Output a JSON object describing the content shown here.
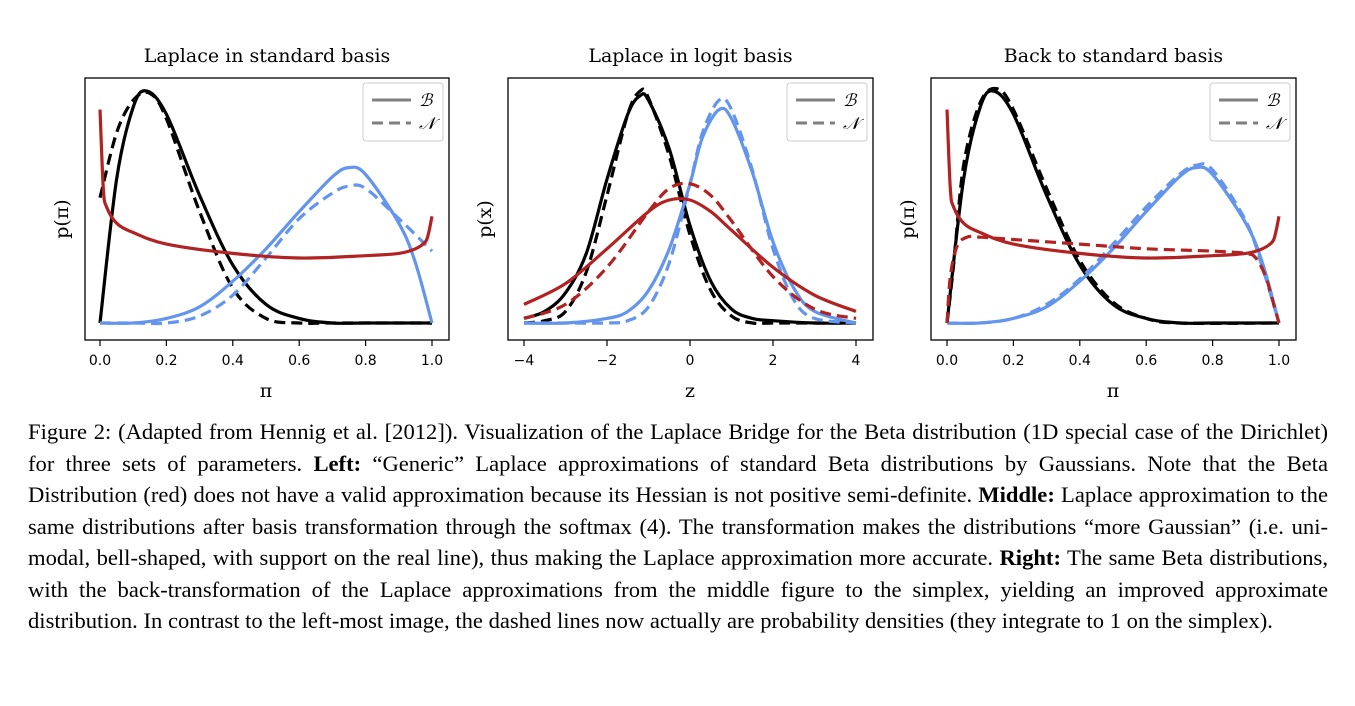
{
  "chart_data": [
    {
      "type": "line",
      "title": "Laplace in standard basis",
      "xlabel": "π",
      "ylabel": "p(π)",
      "xlim": [
        0,
        1
      ],
      "xticks": [
        "0.0",
        "0.2",
        "0.4",
        "0.6",
        "0.8",
        "1.0"
      ],
      "legend": {
        "placement": "top-right",
        "entries": [
          {
            "label": "ℬ",
            "style": "solid"
          },
          {
            "label": "𝒩",
            "style": "dashed"
          }
        ]
      },
      "series": [
        {
          "color": "#000000",
          "style": "solid",
          "x": [
            0.0,
            0.05,
            0.1,
            0.14,
            0.2,
            0.3,
            0.4,
            0.5,
            0.6,
            0.7,
            0.8,
            1.0
          ],
          "y": [
            0.0,
            0.62,
            0.93,
            1.0,
            0.9,
            0.55,
            0.25,
            0.08,
            0.02,
            0.0,
            0.0,
            0.0
          ]
        },
        {
          "color": "#000000",
          "style": "dashed",
          "x": [
            0.0,
            0.05,
            0.1,
            0.15,
            0.2,
            0.3,
            0.4,
            0.5,
            0.6,
            0.7,
            1.0
          ],
          "y": [
            0.54,
            0.82,
            0.96,
            0.99,
            0.88,
            0.48,
            0.15,
            0.02,
            0.0,
            0.0,
            0.0
          ]
        },
        {
          "color": "#6495ed",
          "style": "solid",
          "x": [
            0.0,
            0.1,
            0.2,
            0.3,
            0.4,
            0.5,
            0.6,
            0.7,
            0.75,
            0.8,
            0.9,
            0.95,
            1.0
          ],
          "y": [
            0.0,
            0.0,
            0.02,
            0.07,
            0.18,
            0.32,
            0.48,
            0.63,
            0.67,
            0.64,
            0.43,
            0.26,
            0.0
          ]
        },
        {
          "color": "#6495ed",
          "style": "dashed",
          "x": [
            0.0,
            0.1,
            0.2,
            0.3,
            0.4,
            0.5,
            0.6,
            0.7,
            0.75,
            0.8,
            0.9,
            1.0
          ],
          "y": [
            0.0,
            0.0,
            0.0,
            0.03,
            0.12,
            0.28,
            0.45,
            0.56,
            0.59,
            0.58,
            0.45,
            0.31
          ]
        },
        {
          "color": "#b22222",
          "style": "solid",
          "x": [
            0.0,
            0.01,
            0.02,
            0.05,
            0.1,
            0.2,
            0.4,
            0.6,
            0.8,
            0.9,
            0.95,
            0.98,
            0.99,
            1.0
          ],
          "y": [
            0.92,
            0.58,
            0.5,
            0.43,
            0.39,
            0.34,
            0.3,
            0.28,
            0.29,
            0.3,
            0.32,
            0.35,
            0.39,
            0.46
          ]
        }
      ]
    },
    {
      "type": "line",
      "title": "Laplace in logit basis",
      "xlabel": "z",
      "ylabel": "p(x)",
      "xlim": [
        -4,
        4
      ],
      "xticks": [
        "−4",
        "−2",
        "0",
        "2",
        "4"
      ],
      "legend": {
        "placement": "top-right",
        "entries": [
          {
            "label": "ℬ",
            "style": "solid"
          },
          {
            "label": "𝒩",
            "style": "dashed"
          }
        ]
      },
      "series": [
        {
          "color": "#000000",
          "style": "solid",
          "x": [
            -4,
            -3.5,
            -3,
            -2.5,
            -2,
            -1.5,
            -1.2,
            -1,
            -0.5,
            0,
            0.5,
            1,
            1.5,
            2,
            3,
            4
          ],
          "y": [
            0.02,
            0.05,
            0.13,
            0.3,
            0.62,
            0.9,
            0.98,
            0.96,
            0.75,
            0.42,
            0.18,
            0.06,
            0.02,
            0.01,
            0.0,
            0.0
          ]
        },
        {
          "color": "#000000",
          "style": "dashed",
          "x": [
            -4,
            -3.5,
            -3,
            -2.5,
            -2,
            -1.5,
            -1.2,
            -1,
            -0.5,
            0,
            0.5,
            1,
            1.5,
            2,
            3,
            4
          ],
          "y": [
            0.0,
            0.01,
            0.05,
            0.22,
            0.55,
            0.9,
            1.0,
            0.97,
            0.72,
            0.38,
            0.14,
            0.03,
            0.0,
            0.0,
            0.0,
            0.0
          ]
        },
        {
          "color": "#6495ed",
          "style": "solid",
          "x": [
            -4,
            -3,
            -2,
            -1.5,
            -1,
            -0.5,
            0,
            0.3,
            0.7,
            1,
            1.5,
            2,
            2.5,
            3,
            4
          ],
          "y": [
            0.0,
            0.0,
            0.02,
            0.05,
            0.14,
            0.32,
            0.6,
            0.8,
            0.92,
            0.88,
            0.65,
            0.35,
            0.15,
            0.05,
            0.0
          ]
        },
        {
          "color": "#6495ed",
          "style": "dashed",
          "x": [
            -4,
            -3,
            -2,
            -1.5,
            -1,
            -0.5,
            0,
            0.3,
            0.7,
            1,
            1.5,
            2,
            2.5,
            3,
            4
          ],
          "y": [
            0.0,
            0.0,
            0.0,
            0.01,
            0.07,
            0.26,
            0.6,
            0.82,
            0.96,
            0.92,
            0.66,
            0.32,
            0.1,
            0.02,
            0.0
          ]
        },
        {
          "color": "#b22222",
          "style": "solid",
          "x": [
            -4,
            -3,
            -2,
            -1,
            -0.5,
            0,
            0.5,
            1,
            2,
            3,
            4
          ],
          "y": [
            0.08,
            0.17,
            0.32,
            0.48,
            0.53,
            0.53,
            0.48,
            0.4,
            0.24,
            0.12,
            0.05
          ]
        },
        {
          "color": "#b22222",
          "style": "dashed",
          "x": [
            -4,
            -3,
            -2,
            -1,
            -0.5,
            0,
            0.5,
            1,
            2,
            3,
            4
          ],
          "y": [
            0.02,
            0.08,
            0.24,
            0.48,
            0.58,
            0.6,
            0.55,
            0.44,
            0.2,
            0.06,
            0.02
          ]
        }
      ]
    },
    {
      "type": "line",
      "title": "Back to standard basis",
      "xlabel": "π",
      "ylabel": "p(π)",
      "xlim": [
        0,
        1
      ],
      "xticks": [
        "0.0",
        "0.2",
        "0.4",
        "0.6",
        "0.8",
        "1.0"
      ],
      "legend": {
        "placement": "top-right",
        "entries": [
          {
            "label": "ℬ",
            "style": "solid"
          },
          {
            "label": "𝒩",
            "style": "dashed"
          }
        ]
      },
      "series": [
        {
          "color": "#000000",
          "style": "solid",
          "x": [
            0.0,
            0.05,
            0.1,
            0.14,
            0.2,
            0.3,
            0.4,
            0.5,
            0.6,
            0.7,
            0.8,
            1.0
          ],
          "y": [
            0.0,
            0.62,
            0.93,
            1.0,
            0.9,
            0.55,
            0.25,
            0.08,
            0.02,
            0.0,
            0.0,
            0.0
          ]
        },
        {
          "color": "#000000",
          "style": "dashed",
          "x": [
            0.0,
            0.02,
            0.05,
            0.1,
            0.15,
            0.2,
            0.3,
            0.4,
            0.5,
            0.6,
            0.7,
            1.0
          ],
          "y": [
            0.0,
            0.25,
            0.68,
            0.95,
            1.01,
            0.92,
            0.58,
            0.27,
            0.09,
            0.02,
            0.0,
            0.0
          ]
        },
        {
          "color": "#6495ed",
          "style": "solid",
          "x": [
            0.0,
            0.1,
            0.2,
            0.3,
            0.4,
            0.5,
            0.6,
            0.7,
            0.75,
            0.8,
            0.9,
            0.95,
            1.0
          ],
          "y": [
            0.0,
            0.0,
            0.02,
            0.07,
            0.18,
            0.32,
            0.48,
            0.63,
            0.67,
            0.64,
            0.43,
            0.26,
            0.0
          ]
        },
        {
          "color": "#6495ed",
          "style": "dashed",
          "x": [
            0.0,
            0.1,
            0.2,
            0.3,
            0.4,
            0.5,
            0.6,
            0.7,
            0.75,
            0.8,
            0.9,
            0.95,
            1.0
          ],
          "y": [
            0.0,
            0.0,
            0.02,
            0.08,
            0.19,
            0.34,
            0.5,
            0.64,
            0.68,
            0.66,
            0.44,
            0.24,
            0.0
          ]
        },
        {
          "color": "#b22222",
          "style": "solid",
          "x": [
            0.0,
            0.01,
            0.02,
            0.05,
            0.1,
            0.2,
            0.4,
            0.6,
            0.8,
            0.9,
            0.95,
            0.98,
            0.99,
            1.0
          ],
          "y": [
            0.92,
            0.58,
            0.5,
            0.43,
            0.39,
            0.34,
            0.3,
            0.28,
            0.29,
            0.3,
            0.32,
            0.35,
            0.39,
            0.46
          ]
        },
        {
          "color": "#b22222",
          "style": "dashed",
          "x": [
            0.0,
            0.01,
            0.03,
            0.06,
            0.1,
            0.2,
            0.4,
            0.6,
            0.8,
            0.9,
            0.93,
            0.96,
            0.98,
            1.0
          ],
          "y": [
            0.0,
            0.2,
            0.33,
            0.37,
            0.37,
            0.36,
            0.34,
            0.32,
            0.31,
            0.3,
            0.28,
            0.2,
            0.1,
            0.0
          ]
        }
      ]
    }
  ],
  "caption": {
    "label": "Figure 2:",
    "t1": " (Adapted from Hennig et al. [2012]). Visualization of the Laplace Bridge for the Beta distribution (1D special case of the Dirichlet) for three sets of parameters. ",
    "b1": "Left:",
    "t2": " “Generic” Laplace approximations of standard Beta distributions by Gaussians. Note that the Beta Distribution (red) does not have a valid approximation because its Hessian is not positive semi-definite. ",
    "b2": "Middle:",
    "t3": " Laplace approximation to the same distributions after basis transformation through the softmax (4). The transformation makes the distributions “more Gaussian” (i.e. uni-modal, bell-shaped, with support on the real line), thus making the Laplace approximation more accurate. ",
    "b3": "Right:",
    "t4": " The same Beta distributions, with the back-transformation of the Laplace approximations from the middle figure to the simplex, yielding an improved approximate distribution. In contrast to the left-most image, the dashed lines now actually are probability densities (they integrate to 1 on the simplex)."
  }
}
